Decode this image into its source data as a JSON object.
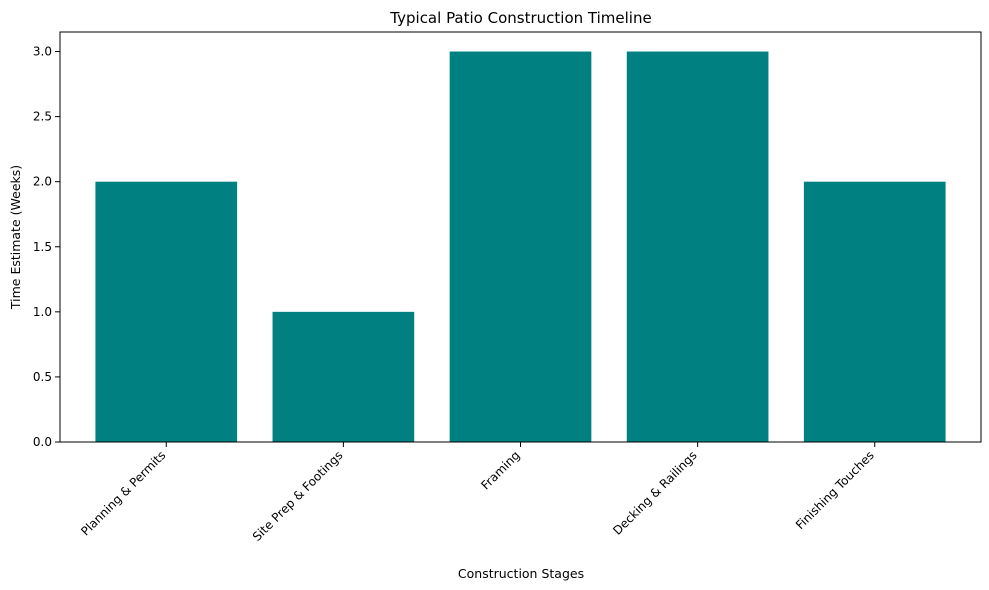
{
  "chart_data": {
    "type": "bar",
    "title": "Typical Patio Construction Timeline",
    "xlabel": "Construction Stages",
    "ylabel": "Time Estimate (Weeks)",
    "categories": [
      "Planning & Permits",
      "Site Prep & Footings",
      "Framing",
      "Decking & Railings",
      "Finishing Touches"
    ],
    "values": [
      2,
      1,
      3,
      3,
      2
    ],
    "ylim": [
      0,
      3.15
    ],
    "yticks": [
      "0.0",
      "0.5",
      "1.0",
      "1.5",
      "2.0",
      "2.5",
      "3.0"
    ],
    "bar_color": "#008080",
    "grid": false,
    "legend": "none"
  }
}
